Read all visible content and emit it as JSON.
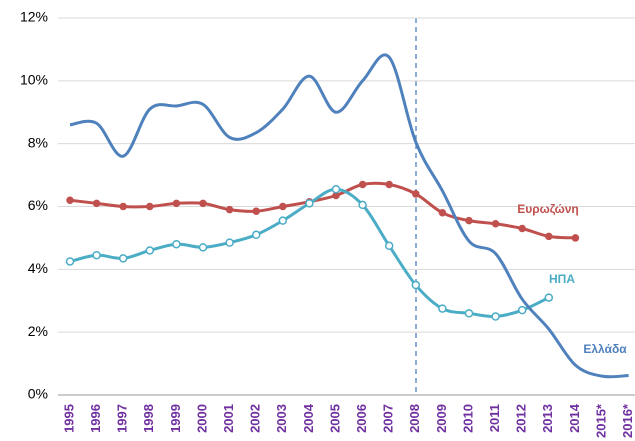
{
  "chart_data": {
    "type": "line",
    "categories": [
      "1995",
      "1996",
      "1997",
      "1998",
      "1999",
      "2000",
      "2001",
      "2002",
      "2003",
      "2004",
      "2005",
      "2006",
      "2007",
      "2008",
      "2009",
      "2010",
      "2011",
      "2012",
      "2013",
      "2014",
      "2015*",
      "2016*"
    ],
    "series": [
      {
        "name": "Ευρωζώνη",
        "color": "#c0504d",
        "marker": "filled",
        "values": [
          6.2,
          6.1,
          6.0,
          6.0,
          6.1,
          6.1,
          5.9,
          5.85,
          6.0,
          6.15,
          6.35,
          6.7,
          6.7,
          6.4,
          5.8,
          5.55,
          5.45,
          5.3,
          5.05,
          5.0,
          null,
          null
        ]
      },
      {
        "name": "ΗΠΑ",
        "color": "#4bacc6",
        "marker": "hollow",
        "values": [
          4.25,
          4.45,
          4.35,
          4.6,
          4.8,
          4.7,
          4.85,
          5.1,
          5.55,
          6.1,
          6.55,
          6.05,
          4.75,
          3.5,
          2.75,
          2.6,
          2.5,
          2.7,
          3.1,
          null,
          null,
          null
        ]
      },
      {
        "name": "Ελλάδα",
        "color": "#4f81bd",
        "marker": "none",
        "values": [
          8.6,
          8.65,
          7.6,
          9.1,
          9.2,
          9.25,
          8.2,
          8.35,
          9.1,
          10.15,
          9.0,
          10.0,
          10.75,
          8.05,
          6.5,
          4.9,
          4.5,
          3.05,
          2.1,
          0.95,
          0.6,
          0.62
        ]
      }
    ],
    "ylim": [
      0,
      12
    ],
    "yticks": [
      {
        "value": 0,
        "label": "0%"
      },
      {
        "value": 2,
        "label": "2%"
      },
      {
        "value": 4,
        "label": "4%"
      },
      {
        "value": 6,
        "label": "6%"
      },
      {
        "value": 8,
        "label": "8%"
      },
      {
        "value": 10,
        "label": "10%"
      },
      {
        "value": 12,
        "label": "12%"
      }
    ],
    "grid": true
  }
}
